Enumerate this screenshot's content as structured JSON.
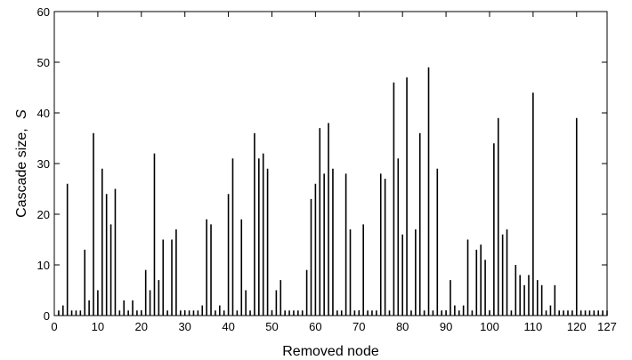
{
  "chart_data": {
    "type": "bar",
    "style": "stem",
    "xlabel": "Removed node",
    "ylabel": "Cascade size,",
    "ylabel_symbol": "S",
    "xlim": [
      0,
      127
    ],
    "ylim": [
      0,
      60
    ],
    "xticks": [
      0,
      10,
      20,
      30,
      40,
      50,
      60,
      70,
      80,
      90,
      100,
      110,
      120,
      127
    ],
    "yticks": [
      0,
      10,
      20,
      30,
      40,
      50,
      60
    ],
    "grid": false,
    "legend": "none",
    "bar_color": "#000000",
    "x": [
      1,
      2,
      3,
      4,
      5,
      6,
      7,
      8,
      9,
      10,
      11,
      12,
      13,
      14,
      15,
      16,
      17,
      18,
      19,
      20,
      21,
      22,
      23,
      24,
      25,
      26,
      27,
      28,
      29,
      30,
      31,
      32,
      33,
      34,
      35,
      36,
      37,
      38,
      39,
      40,
      41,
      42,
      43,
      44,
      45,
      46,
      47,
      48,
      49,
      50,
      51,
      52,
      53,
      54,
      55,
      56,
      57,
      58,
      59,
      60,
      61,
      62,
      63,
      64,
      65,
      66,
      67,
      68,
      69,
      70,
      71,
      72,
      73,
      74,
      75,
      76,
      77,
      78,
      79,
      80,
      81,
      82,
      83,
      84,
      85,
      86,
      87,
      88,
      89,
      90,
      91,
      92,
      93,
      94,
      95,
      96,
      97,
      98,
      99,
      100,
      101,
      102,
      103,
      104,
      105,
      106,
      107,
      108,
      109,
      110,
      111,
      112,
      113,
      114,
      115,
      116,
      117,
      118,
      119,
      120,
      121,
      122,
      123,
      124,
      125,
      126,
      127
    ],
    "values": [
      1,
      2,
      26,
      1,
      1,
      1,
      13,
      3,
      36,
      5,
      29,
      24,
      18,
      25,
      1,
      3,
      1,
      3,
      1,
      1,
      9,
      5,
      32,
      7,
      15,
      1,
      15,
      17,
      1,
      1,
      1,
      1,
      1,
      2,
      19,
      18,
      1,
      2,
      1,
      24,
      31,
      1,
      19,
      5,
      1,
      36,
      31,
      32,
      29,
      1,
      5,
      7,
      1,
      1,
      1,
      1,
      1,
      9,
      23,
      26,
      37,
      28,
      38,
      29,
      1,
      1,
      28,
      17,
      1,
      1,
      18,
      1,
      1,
      1,
      28,
      27,
      1,
      46,
      31,
      16,
      47,
      1,
      17,
      36,
      1,
      49,
      1,
      29,
      1,
      1,
      7,
      2,
      1,
      2,
      15,
      1,
      13,
      14,
      11,
      1,
      34,
      39,
      16,
      17,
      1,
      10,
      8,
      6,
      8,
      44,
      7,
      6,
      1,
      2,
      6,
      1,
      1,
      1,
      1,
      39,
      1,
      1,
      1,
      1,
      1,
      1,
      1
    ]
  }
}
